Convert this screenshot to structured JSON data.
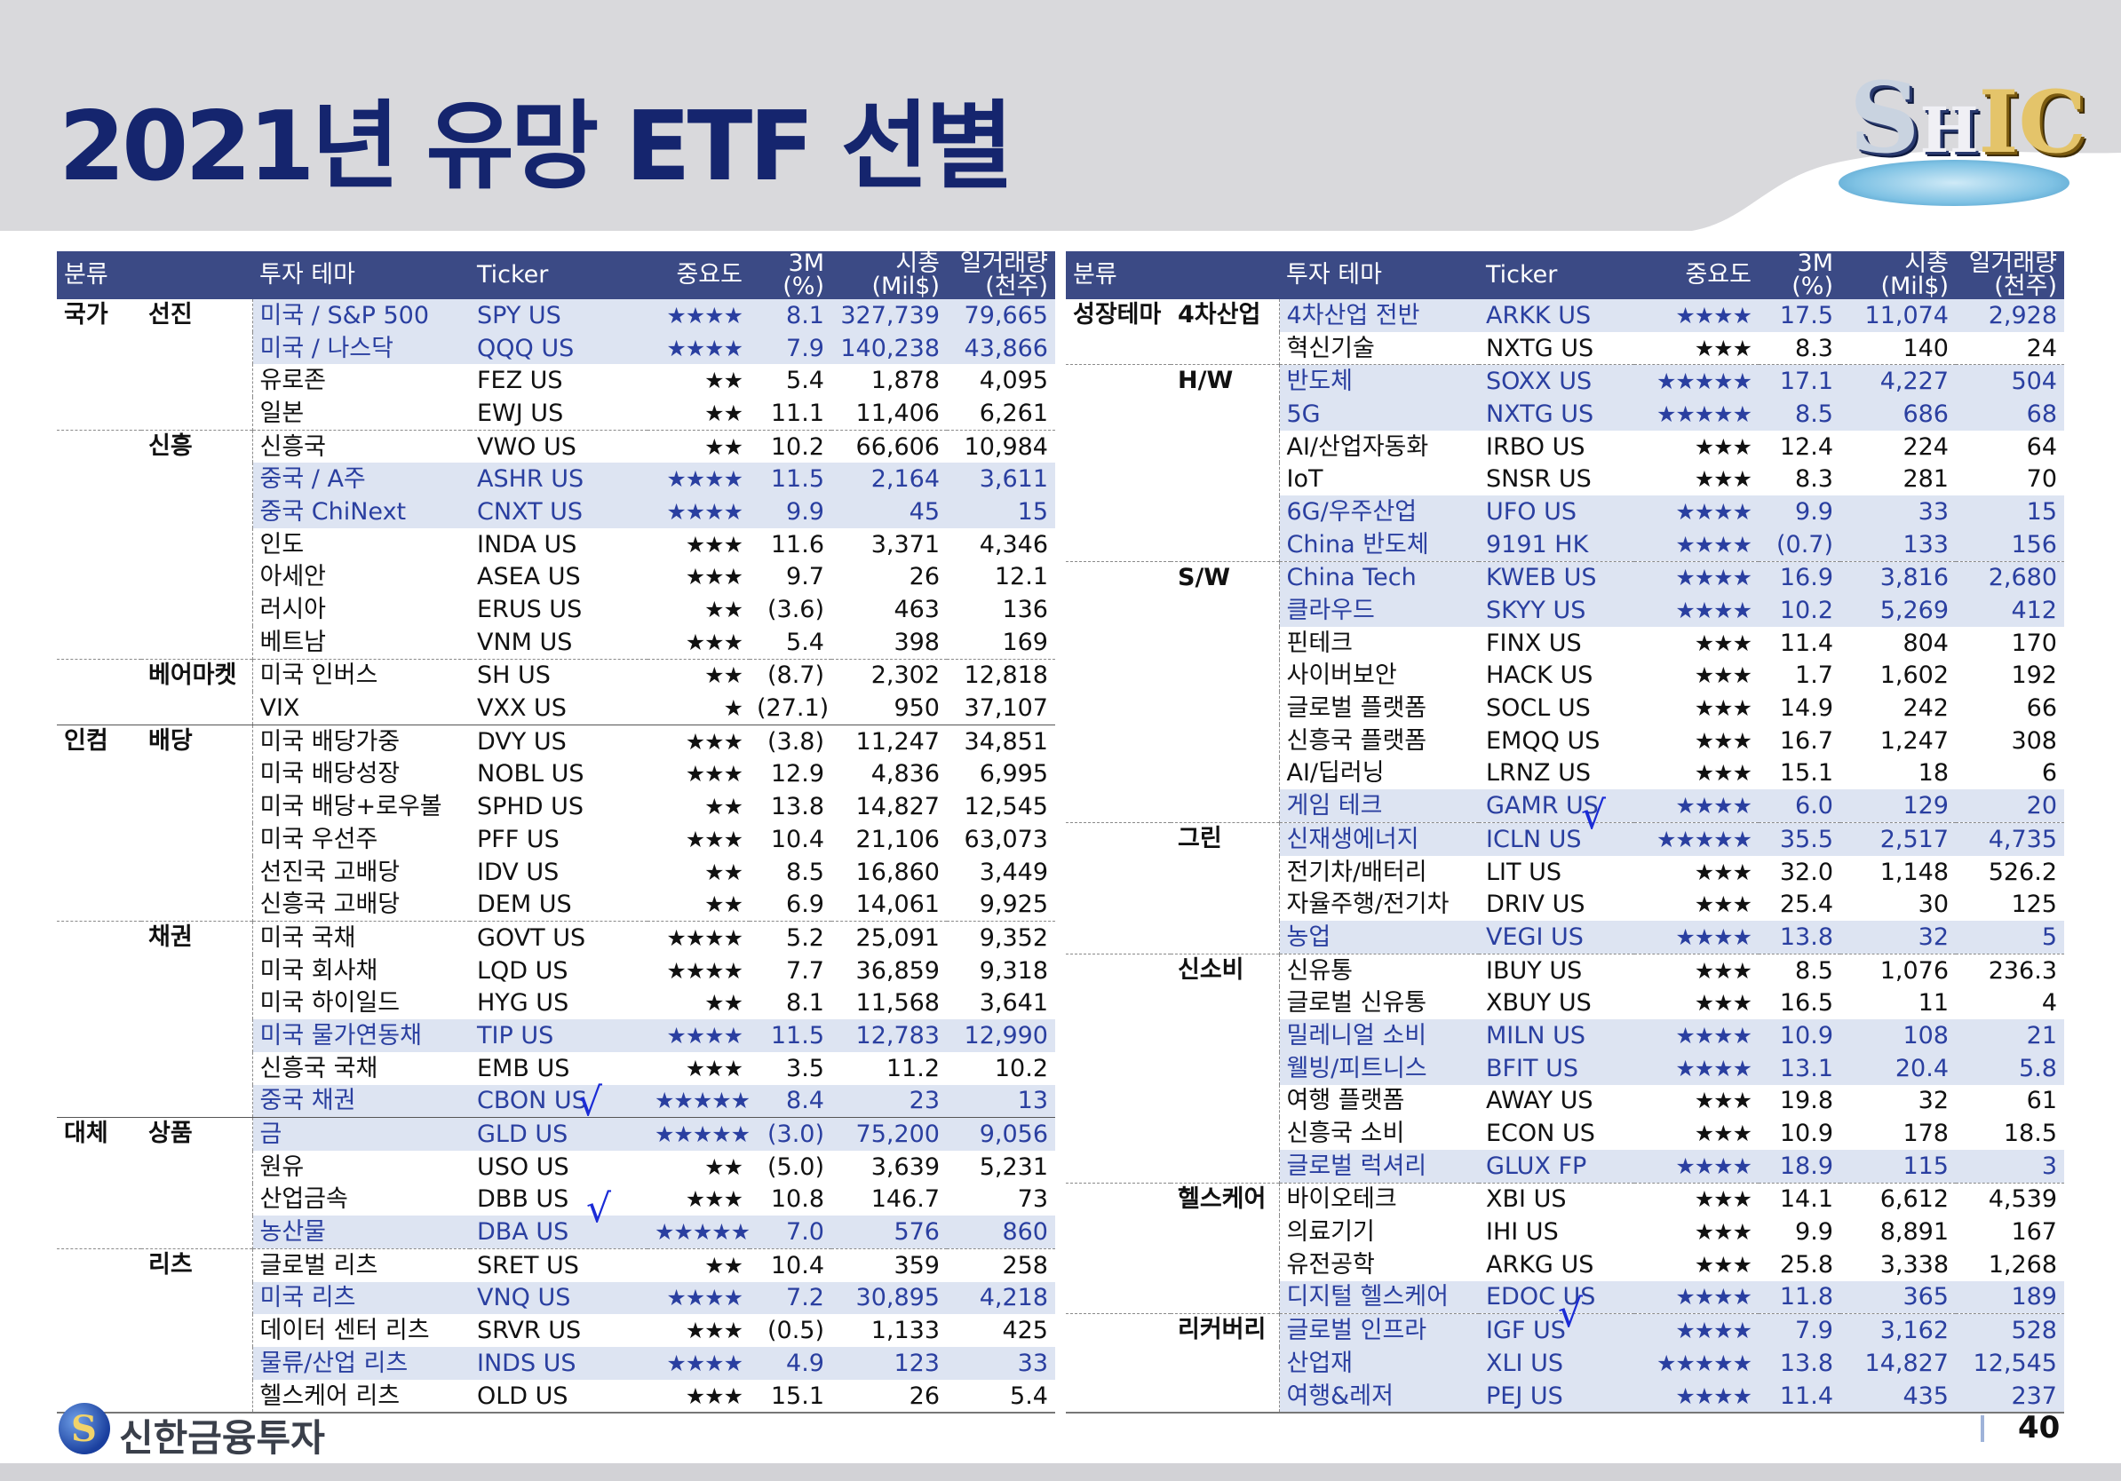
{
  "page": {
    "title": "2021년 유망 ETF 선별",
    "logo_text": "SHIC",
    "brand": "신한금융투자",
    "page_number": "40"
  },
  "columns": {
    "category": "분류",
    "theme": "투자 테마",
    "ticker": "Ticker",
    "importance": "중요도",
    "return_3m": "3M\n(%)",
    "market_cap": "시총\n(Mil$)",
    "daily_volume": "일거래량\n(천주)"
  },
  "colors": {
    "header_bg": "#3b4a85",
    "highlight_bg": "#dde4f2",
    "highlight_text": "#2a3fa0",
    "title": "#15256e",
    "check_mark": "#1a2bd6"
  },
  "left_table": [
    {
      "c1": "국가",
      "c2": "선진",
      "theme": "미국 / S&P 500",
      "ticker": "SPY US",
      "stars": "★★★★",
      "r3m": "8.1",
      "cap": "327,739",
      "vol": "79,665",
      "hl": true
    },
    {
      "c1": "",
      "c2": "",
      "theme": "미국 / 나스닥",
      "ticker": "QQQ US",
      "stars": "★★★★",
      "r3m": "7.9",
      "cap": "140,238",
      "vol": "43,866",
      "hl": true
    },
    {
      "c1": "",
      "c2": "",
      "theme": "유로존",
      "ticker": "FEZ US",
      "stars": "★★",
      "r3m": "5.4",
      "cap": "1,878",
      "vol": "4,095",
      "hl": false
    },
    {
      "c1": "",
      "c2": "",
      "theme": "일본",
      "ticker": "EWJ US",
      "stars": "★★",
      "r3m": "11.1",
      "cap": "11,406",
      "vol": "6,261",
      "hl": false
    },
    {
      "c1": "",
      "c2": "신흥",
      "theme": "신흥국",
      "ticker": "VWO US",
      "stars": "★★",
      "r3m": "10.2",
      "cap": "66,606",
      "vol": "10,984",
      "hl": false
    },
    {
      "c1": "",
      "c2": "",
      "theme": "중국 / A주",
      "ticker": "ASHR US",
      "stars": "★★★★",
      "r3m": "11.5",
      "cap": "2,164",
      "vol": "3,611",
      "hl": true
    },
    {
      "c1": "",
      "c2": "",
      "theme": "중국 ChiNext",
      "ticker": "CNXT US",
      "stars": "★★★★",
      "r3m": "9.9",
      "cap": "45",
      "vol": "15",
      "hl": true
    },
    {
      "c1": "",
      "c2": "",
      "theme": "인도",
      "ticker": "INDA US",
      "stars": "★★★",
      "r3m": "11.6",
      "cap": "3,371",
      "vol": "4,346",
      "hl": false
    },
    {
      "c1": "",
      "c2": "",
      "theme": "아세안",
      "ticker": "ASEA US",
      "stars": "★★★",
      "r3m": "9.7",
      "cap": "26",
      "vol": "12.1",
      "hl": false
    },
    {
      "c1": "",
      "c2": "",
      "theme": "러시아",
      "ticker": "ERUS US",
      "stars": "★★",
      "r3m": "(3.6)",
      "cap": "463",
      "vol": "136",
      "hl": false
    },
    {
      "c1": "",
      "c2": "",
      "theme": "베트남",
      "ticker": "VNM US",
      "stars": "★★★",
      "r3m": "5.4",
      "cap": "398",
      "vol": "169",
      "hl": false
    },
    {
      "c1": "",
      "c2": "베어마켓",
      "theme": "미국 인버스",
      "ticker": "SH US",
      "stars": "★★",
      "r3m": "(8.7)",
      "cap": "2,302",
      "vol": "12,818",
      "hl": false
    },
    {
      "c1": "",
      "c2": "",
      "theme": "VIX",
      "ticker": "VXX US",
      "stars": "★",
      "r3m": "(27.1)",
      "cap": "950",
      "vol": "37,107",
      "hl": false
    },
    {
      "c1": "인컴",
      "c2": "배당",
      "theme": "미국 배당가중",
      "ticker": "DVY US",
      "stars": "★★★",
      "r3m": "(3.8)",
      "cap": "11,247",
      "vol": "34,851",
      "hl": false
    },
    {
      "c1": "",
      "c2": "",
      "theme": "미국 배당성장",
      "ticker": "NOBL US",
      "stars": "★★★",
      "r3m": "12.9",
      "cap": "4,836",
      "vol": "6,995",
      "hl": false
    },
    {
      "c1": "",
      "c2": "",
      "theme": "미국 배당+로우볼",
      "ticker": "SPHD US",
      "stars": "★★",
      "r3m": "13.8",
      "cap": "14,827",
      "vol": "12,545",
      "hl": false
    },
    {
      "c1": "",
      "c2": "",
      "theme": "미국 우선주",
      "ticker": "PFF US",
      "stars": "★★★",
      "r3m": "10.4",
      "cap": "21,106",
      "vol": "63,073",
      "hl": false
    },
    {
      "c1": "",
      "c2": "",
      "theme": "선진국 고배당",
      "ticker": "IDV US",
      "stars": "★★",
      "r3m": "8.5",
      "cap": "16,860",
      "vol": "3,449",
      "hl": false
    },
    {
      "c1": "",
      "c2": "",
      "theme": "신흥국 고배당",
      "ticker": "DEM US",
      "stars": "★★",
      "r3m": "6.9",
      "cap": "14,061",
      "vol": "9,925",
      "hl": false
    },
    {
      "c1": "",
      "c2": "채권",
      "theme": "미국 국채",
      "ticker": "GOVT US",
      "stars": "★★★★",
      "r3m": "5.2",
      "cap": "25,091",
      "vol": "9,352",
      "hl": false
    },
    {
      "c1": "",
      "c2": "",
      "theme": "미국 회사채",
      "ticker": "LQD US",
      "stars": "★★★★",
      "r3m": "7.7",
      "cap": "36,859",
      "vol": "9,318",
      "hl": false
    },
    {
      "c1": "",
      "c2": "",
      "theme": "미국 하이일드",
      "ticker": "HYG US",
      "stars": "★★",
      "r3m": "8.1",
      "cap": "11,568",
      "vol": "3,641",
      "hl": false
    },
    {
      "c1": "",
      "c2": "",
      "theme": "미국 물가연동채",
      "ticker": "TIP US",
      "stars": "★★★★",
      "r3m": "11.5",
      "cap": "12,783",
      "vol": "12,990",
      "hl": true
    },
    {
      "c1": "",
      "c2": "",
      "theme": "신흥국 국채",
      "ticker": "EMB US",
      "stars": "★★★",
      "r3m": "3.5",
      "cap": "11.2",
      "vol": "10.2",
      "hl": false
    },
    {
      "c1": "",
      "c2": "",
      "theme": "중국 채권",
      "ticker": "CBON US",
      "stars": "★★★★★",
      "r3m": "8.4",
      "cap": "23",
      "vol": "13",
      "hl": true
    },
    {
      "c1": "대체",
      "c2": "상품",
      "theme": "금",
      "ticker": "GLD US",
      "stars": "★★★★★",
      "r3m": "(3.0)",
      "cap": "75,200",
      "vol": "9,056",
      "hl": true
    },
    {
      "c1": "",
      "c2": "",
      "theme": "원유",
      "ticker": "USO US",
      "stars": "★★",
      "r3m": "(5.0)",
      "cap": "3,639",
      "vol": "5,231",
      "hl": false
    },
    {
      "c1": "",
      "c2": "",
      "theme": "산업금속",
      "ticker": "DBB US",
      "stars": "★★★",
      "r3m": "10.8",
      "cap": "146.7",
      "vol": "73",
      "hl": false
    },
    {
      "c1": "",
      "c2": "",
      "theme": "농산물",
      "ticker": "DBA US",
      "stars": "★★★★★",
      "r3m": "7.0",
      "cap": "576",
      "vol": "860",
      "hl": true
    },
    {
      "c1": "",
      "c2": "리츠",
      "theme": "글로벌 리츠",
      "ticker": "SRET US",
      "stars": "★★",
      "r3m": "10.4",
      "cap": "359",
      "vol": "258",
      "hl": false
    },
    {
      "c1": "",
      "c2": "",
      "theme": "미국 리츠",
      "ticker": "VNQ US",
      "stars": "★★★★",
      "r3m": "7.2",
      "cap": "30,895",
      "vol": "4,218",
      "hl": true
    },
    {
      "c1": "",
      "c2": "",
      "theme": "데이터 센터 리츠",
      "ticker": "SRVR US",
      "stars": "★★★",
      "r3m": "(0.5)",
      "cap": "1,133",
      "vol": "425",
      "hl": false
    },
    {
      "c1": "",
      "c2": "",
      "theme": "물류/산업 리츠",
      "ticker": "INDS US",
      "stars": "★★★★",
      "r3m": "4.9",
      "cap": "123",
      "vol": "33",
      "hl": true
    },
    {
      "c1": "",
      "c2": "",
      "theme": "헬스케어 리츠",
      "ticker": "OLD US",
      "stars": "★★★",
      "r3m": "15.1",
      "cap": "26",
      "vol": "5.4",
      "hl": false
    }
  ],
  "right_table": [
    {
      "c1": "성장테마",
      "c2": "4차산업",
      "theme": "4차산업 전반",
      "ticker": "ARKK US",
      "stars": "★★★★",
      "r3m": "17.5",
      "cap": "11,074",
      "vol": "2,928",
      "hl": true
    },
    {
      "c1": "",
      "c2": "",
      "theme": "혁신기술",
      "ticker": "NXTG US",
      "stars": "★★★",
      "r3m": "8.3",
      "cap": "140",
      "vol": "24",
      "hl": false
    },
    {
      "c1": "",
      "c2": "H/W",
      "theme": "반도체",
      "ticker": "SOXX US",
      "stars": "★★★★★",
      "r3m": "17.1",
      "cap": "4,227",
      "vol": "504",
      "hl": true
    },
    {
      "c1": "",
      "c2": "",
      "theme": "5G",
      "ticker": "NXTG US",
      "stars": "★★★★★",
      "r3m": "8.5",
      "cap": "686",
      "vol": "68",
      "hl": true
    },
    {
      "c1": "",
      "c2": "",
      "theme": "AI/산업자동화",
      "ticker": "IRBO US",
      "stars": "★★★",
      "r3m": "12.4",
      "cap": "224",
      "vol": "64",
      "hl": false
    },
    {
      "c1": "",
      "c2": "",
      "theme": "IoT",
      "ticker": "SNSR US",
      "stars": "★★★",
      "r3m": "8.3",
      "cap": "281",
      "vol": "70",
      "hl": false
    },
    {
      "c1": "",
      "c2": "",
      "theme": "6G/우주산업",
      "ticker": "UFO US",
      "stars": "★★★★",
      "r3m": "9.9",
      "cap": "33",
      "vol": "15",
      "hl": true
    },
    {
      "c1": "",
      "c2": "",
      "theme": "China 반도체",
      "ticker": "9191 HK",
      "stars": "★★★★",
      "r3m": "(0.7)",
      "cap": "133",
      "vol": "156",
      "hl": true
    },
    {
      "c1": "",
      "c2": "S/W",
      "theme": "China Tech",
      "ticker": "KWEB US",
      "stars": "★★★★",
      "r3m": "16.9",
      "cap": "3,816",
      "vol": "2,680",
      "hl": true
    },
    {
      "c1": "",
      "c2": "",
      "theme": "클라우드",
      "ticker": "SKYY US",
      "stars": "★★★★",
      "r3m": "10.2",
      "cap": "5,269",
      "vol": "412",
      "hl": true
    },
    {
      "c1": "",
      "c2": "",
      "theme": "핀테크",
      "ticker": "FINX US",
      "stars": "★★★",
      "r3m": "11.4",
      "cap": "804",
      "vol": "170",
      "hl": false
    },
    {
      "c1": "",
      "c2": "",
      "theme": "사이버보안",
      "ticker": "HACK US",
      "stars": "★★★",
      "r3m": "1.7",
      "cap": "1,602",
      "vol": "192",
      "hl": false
    },
    {
      "c1": "",
      "c2": "",
      "theme": "글로벌 플랫폼",
      "ticker": "SOCL US",
      "stars": "★★★",
      "r3m": "14.9",
      "cap": "242",
      "vol": "66",
      "hl": false
    },
    {
      "c1": "",
      "c2": "",
      "theme": "신흥국 플랫폼",
      "ticker": "EMQQ US",
      "stars": "★★★",
      "r3m": "16.7",
      "cap": "1,247",
      "vol": "308",
      "hl": false
    },
    {
      "c1": "",
      "c2": "",
      "theme": "AI/딥러닝",
      "ticker": "LRNZ US",
      "stars": "★★★",
      "r3m": "15.1",
      "cap": "18",
      "vol": "6",
      "hl": false
    },
    {
      "c1": "",
      "c2": "",
      "theme": "게임 테크",
      "ticker": "GAMR US",
      "stars": "★★★★",
      "r3m": "6.0",
      "cap": "129",
      "vol": "20",
      "hl": true
    },
    {
      "c1": "",
      "c2": "그린",
      "theme": "신재생에너지",
      "ticker": "ICLN US",
      "stars": "★★★★★",
      "r3m": "35.5",
      "cap": "2,517",
      "vol": "4,735",
      "hl": true
    },
    {
      "c1": "",
      "c2": "",
      "theme": "전기차/배터리",
      "ticker": "LIT US",
      "stars": "★★★",
      "r3m": "32.0",
      "cap": "1,148",
      "vol": "526.2",
      "hl": false
    },
    {
      "c1": "",
      "c2": "",
      "theme": "자율주행/전기차",
      "ticker": "DRIV US",
      "stars": "★★★",
      "r3m": "25.4",
      "cap": "30",
      "vol": "125",
      "hl": false
    },
    {
      "c1": "",
      "c2": "",
      "theme": "농업",
      "ticker": "VEGI US",
      "stars": "★★★★",
      "r3m": "13.8",
      "cap": "32",
      "vol": "5",
      "hl": true
    },
    {
      "c1": "",
      "c2": "신소비",
      "theme": "신유통",
      "ticker": "IBUY US",
      "stars": "★★★",
      "r3m": "8.5",
      "cap": "1,076",
      "vol": "236.3",
      "hl": false
    },
    {
      "c1": "",
      "c2": "",
      "theme": "글로벌 신유통",
      "ticker": "XBUY US",
      "stars": "★★★",
      "r3m": "16.5",
      "cap": "11",
      "vol": "4",
      "hl": false
    },
    {
      "c1": "",
      "c2": "",
      "theme": "밀레니얼 소비",
      "ticker": "MILN US",
      "stars": "★★★★",
      "r3m": "10.9",
      "cap": "108",
      "vol": "21",
      "hl": true
    },
    {
      "c1": "",
      "c2": "",
      "theme": "웰빙/피트니스",
      "ticker": "BFIT US",
      "stars": "★★★★",
      "r3m": "13.1",
      "cap": "20.4",
      "vol": "5.8",
      "hl": true
    },
    {
      "c1": "",
      "c2": "",
      "theme": "여행 플랫폼",
      "ticker": "AWAY US",
      "stars": "★★★",
      "r3m": "19.8",
      "cap": "32",
      "vol": "61",
      "hl": false
    },
    {
      "c1": "",
      "c2": "",
      "theme": "신흥국 소비",
      "ticker": "ECON US",
      "stars": "★★★",
      "r3m": "10.9",
      "cap": "178",
      "vol": "18.5",
      "hl": false
    },
    {
      "c1": "",
      "c2": "",
      "theme": "글로벌 럭셔리",
      "ticker": "GLUX FP",
      "stars": "★★★★",
      "r3m": "18.9",
      "cap": "115",
      "vol": "3",
      "hl": true
    },
    {
      "c1": "",
      "c2": "헬스케어",
      "theme": "바이오테크",
      "ticker": "XBI US",
      "stars": "★★★",
      "r3m": "14.1",
      "cap": "6,612",
      "vol": "4,539",
      "hl": false
    },
    {
      "c1": "",
      "c2": "",
      "theme": "의료기기",
      "ticker": "IHI US",
      "stars": "★★★",
      "r3m": "9.9",
      "cap": "8,891",
      "vol": "167",
      "hl": false
    },
    {
      "c1": "",
      "c2": "",
      "theme": "유전공학",
      "ticker": "ARKG US",
      "stars": "★★★",
      "r3m": "25.8",
      "cap": "3,338",
      "vol": "1,268",
      "hl": false
    },
    {
      "c1": "",
      "c2": "",
      "theme": "디지털 헬스케어",
      "ticker": "EDOC US",
      "stars": "★★★★",
      "r3m": "11.8",
      "cap": "365",
      "vol": "189",
      "hl": true
    },
    {
      "c1": "",
      "c2": "리커버리",
      "theme": "글로벌 인프라",
      "ticker": "IGF US",
      "stars": "★★★★",
      "r3m": "7.9",
      "cap": "3,162",
      "vol": "528",
      "hl": true
    },
    {
      "c1": "",
      "c2": "",
      "theme": "산업재",
      "ticker": "XLI US",
      "stars": "★★★★★",
      "r3m": "13.8",
      "cap": "14,827",
      "vol": "12,545",
      "hl": true
    },
    {
      "c1": "",
      "c2": "",
      "theme": "여행&레저",
      "ticker": "PEJ US",
      "stars": "★★★★",
      "r3m": "11.4",
      "cap": "435",
      "vol": "237",
      "hl": true
    }
  ],
  "annotations": {
    "check_mark": "√"
  }
}
